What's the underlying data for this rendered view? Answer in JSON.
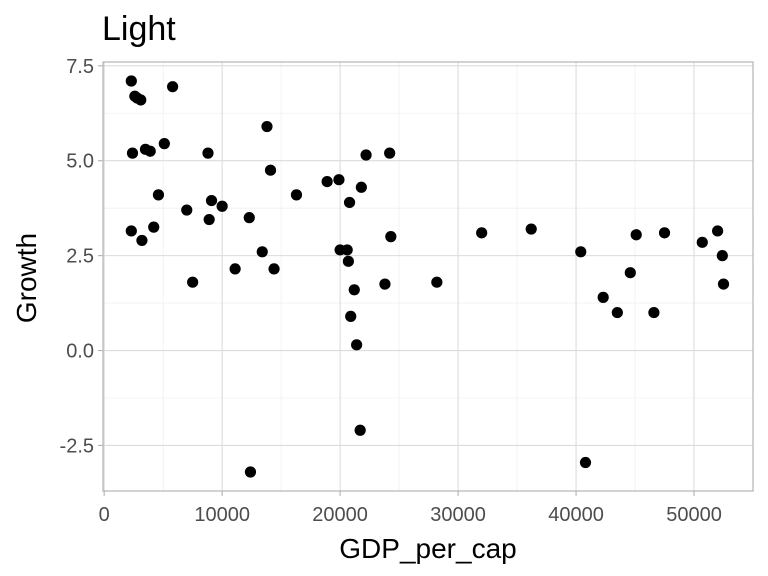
{
  "chart_data": {
    "type": "scatter",
    "title": "Light",
    "xlabel": "GDP_per_cap",
    "ylabel": "Growth",
    "xlim": [
      -100,
      55000
    ],
    "ylim": [
      -3.7,
      7.6
    ],
    "grid": true,
    "x_ticks": [
      0,
      10000,
      20000,
      30000,
      40000,
      50000
    ],
    "x_tick_labels": [
      "0",
      "10000",
      "20000",
      "30000",
      "40000",
      "50000"
    ],
    "y_ticks": [
      -2.5,
      0.0,
      2.5,
      5.0,
      7.5
    ],
    "y_tick_labels": [
      "-2.5",
      "0.0",
      "2.5",
      "5.0",
      "7.5"
    ],
    "series": [
      {
        "name": "points",
        "color": "#000000",
        "x": [
          2300,
          2600,
          2800,
          3100,
          2400,
          3500,
          3900,
          5800,
          5100,
          4600,
          2300,
          3200,
          4200,
          7000,
          7500,
          8800,
          9100,
          8900,
          10000,
          11100,
          12300,
          12400,
          13400,
          13800,
          14100,
          14400,
          16300,
          18900,
          19900,
          20000,
          20600,
          20700,
          20900,
          20800,
          21200,
          21400,
          21700,
          21800,
          22200,
          23800,
          24200,
          24300,
          28200,
          32000,
          36200,
          40400,
          40800,
          42300,
          43500,
          44600,
          45100,
          46600,
          47500,
          50700,
          52000,
          52400,
          52500
        ],
        "y": [
          7.1,
          6.7,
          6.65,
          6.6,
          5.2,
          5.3,
          5.25,
          6.95,
          5.45,
          4.1,
          3.15,
          2.9,
          3.25,
          3.7,
          1.8,
          5.2,
          3.95,
          3.45,
          3.8,
          2.15,
          3.5,
          -3.2,
          2.6,
          5.9,
          4.75,
          2.15,
          4.1,
          4.45,
          4.5,
          2.65,
          2.65,
          2.35,
          0.9,
          3.9,
          1.6,
          0.15,
          -2.1,
          4.3,
          5.15,
          1.75,
          5.2,
          3.0,
          1.8,
          3.1,
          3.2,
          2.6,
          -2.95,
          1.4,
          1.0,
          2.05,
          3.05,
          1.0,
          3.1,
          2.85,
          3.15,
          2.5,
          1.75
        ]
      }
    ]
  }
}
